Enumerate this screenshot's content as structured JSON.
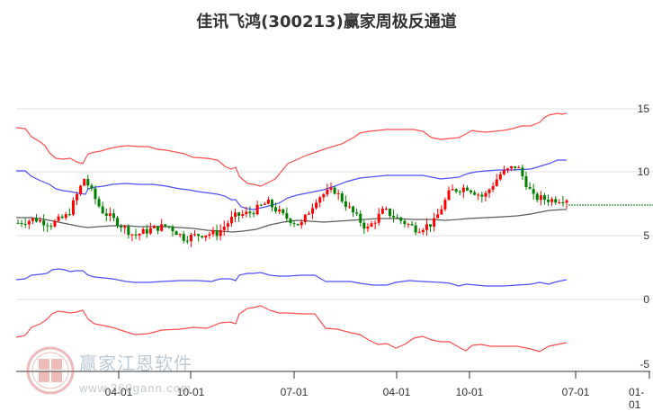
{
  "title": "佳讯飞鸿(300213)赢家周极反通道",
  "watermark": {
    "name": "赢家江恩软件",
    "url": "www.360gann.com",
    "logo_chars": [
      "江",
      "赢",
      "恩",
      "家"
    ]
  },
  "colors": {
    "upper_outer": "#ff3b3b",
    "upper_inner": "#3b3bff",
    "middle": "#333333",
    "candle_up": "#ff0000",
    "candle_down": "#008000",
    "last_price_line": "#008000",
    "grid": "#dddddd"
  },
  "chart_data": {
    "type": "candlestick",
    "title": "佳讯飞鸿(300213)赢家周极反通道",
    "y_axis": {
      "position": "right",
      "ticks": [
        15,
        10,
        5,
        0,
        -5
      ],
      "range": [
        -5,
        15.5
      ],
      "grid": true
    },
    "x_axis": {
      "ticks": [
        "04-01",
        "10-01",
        "07-01",
        "04-01",
        "10-01",
        "07-01",
        "01-01"
      ]
    },
    "series": [
      {
        "name": "upper_outer_band",
        "color": "red",
        "values_approx": [
          13.7,
          13.5,
          12.3,
          11.5,
          11.0,
          10.3,
          10.5,
          12.3,
          13.0,
          13.4,
          13.2,
          12.5,
          11.8,
          11.2,
          9.7,
          9.4,
          10.0,
          10.6,
          10.8,
          12.4,
          13.6,
          14.3,
          14.1,
          13.3,
          13.4,
          14.3,
          14.3,
          15.2,
          15.0
        ]
      },
      {
        "name": "upper_inner_band",
        "color": "blue",
        "values_approx": [
          9.3,
          9.0,
          8.2,
          7.8,
          8.7,
          8.8,
          9.0,
          9.0,
          8.7,
          8.3,
          7.4,
          7.3,
          7.5,
          7.9,
          8.0,
          8.8,
          9.6,
          9.9,
          9.0,
          9.1,
          9.8,
          11.0,
          11.2
        ]
      },
      {
        "name": "middle_line",
        "color": "black",
        "values_approx": [
          6.4,
          6.4,
          5.9,
          6.1,
          6.1,
          5.6,
          5.4,
          5.7,
          6.3,
          6.7,
          6.6,
          6.4,
          6.5,
          6.7,
          7.3,
          7.5
        ]
      },
      {
        "name": "lower_inner_band",
        "color": "blue",
        "values_approx": [
          1.4,
          2.3,
          2.0,
          1.6,
          1.2,
          1.6,
          2.4,
          2.3,
          2.4,
          2.0,
          1.6,
          1.2,
          1.5,
          1.1,
          1.4,
          1.4,
          1.6,
          2.1
        ]
      },
      {
        "name": "lower_outer_band",
        "color": "red",
        "values_approx": [
          -2.9,
          -1.6,
          -0.3,
          -0.7,
          -1.7,
          -2.2,
          -1.8,
          -1.6,
          -0.2,
          -0.1,
          -0.6,
          -1.9,
          -2.5,
          -2.6,
          -2.3,
          -2.9,
          -2.2,
          -3.4,
          -2.9,
          -2.7,
          -3.7,
          -3.1
        ]
      },
      {
        "name": "price_candles_close_approx",
        "values_approx": [
          6.0,
          6.3,
          5.9,
          6.6,
          9.5,
          7.0,
          6.0,
          5.0,
          5.5,
          5.8,
          4.8,
          5.1,
          5.2,
          6.5,
          6.8,
          7.6,
          6.5,
          5.8,
          8.0,
          8.6,
          7.0,
          5.5,
          7.0,
          6.2,
          5.5,
          6.0,
          8.5,
          8.8,
          8.0,
          9.8,
          10.5,
          8.0,
          7.8,
          7.9
        ]
      }
    ],
    "last_price_line": {
      "value": 7.9,
      "style": "dashed",
      "color": "green"
    }
  }
}
